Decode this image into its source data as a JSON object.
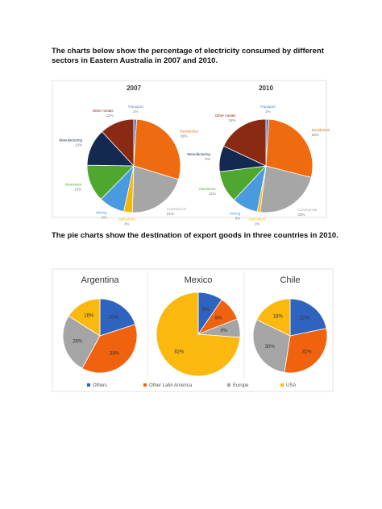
{
  "heading1": "The charts below show the percentage of electricity consumed by different sectors in Eastern Australia in 2007 and 2010.",
  "heading2": "The pie charts show the destination of export goods in three countries in 2010.",
  "chart_data": [
    {
      "type": "pie",
      "title": "2007",
      "categories": [
        "Transport",
        "Residential",
        "Commercial",
        "Agriculture",
        "Mining",
        "Aluminium",
        "Manufacturing",
        "Other metals"
      ],
      "values": [
        1,
        29,
        21,
        3,
        9,
        13,
        13,
        12
      ],
      "value_labels": [
        "1%",
        "29%",
        "21%",
        "3%",
        "9%",
        "13%",
        "13%",
        "12%"
      ],
      "colors": [
        "#4a7bc4",
        "#ef6b10",
        "#a6a6a6",
        "#f5b800",
        "#4a9ae0",
        "#4ea72e",
        "#13294f",
        "#8b2a12"
      ]
    },
    {
      "type": "pie",
      "title": "2010",
      "categories": [
        "Transport",
        "Residential",
        "Commercial",
        "Agriculture",
        "Mining",
        "Aluminium",
        "Manufacturing",
        "Other metals"
      ],
      "values": [
        1,
        28,
        23,
        1,
        9,
        11,
        9,
        18
      ],
      "value_labels": [
        "1%",
        "28%",
        "23%",
        "1%",
        "9%",
        "11%",
        "9%",
        "18%"
      ],
      "colors": [
        "#4a7bc4",
        "#ef6b10",
        "#a6a6a6",
        "#f5b800",
        "#4a9ae0",
        "#4ea72e",
        "#13294f",
        "#8b2a12"
      ]
    },
    {
      "type": "pie",
      "title": "Argentina",
      "categories": [
        "Others",
        "Other Latin America",
        "Europe",
        "USA"
      ],
      "values": [
        20,
        38,
        26,
        16
      ],
      "value_labels": [
        "20%",
        "38%",
        "26%",
        "16%"
      ],
      "colors": [
        "#2e63c0",
        "#f0620e",
        "#a5a5a5",
        "#fbb90f"
      ]
    },
    {
      "type": "pie",
      "title": "Mexico",
      "categories": [
        "Others",
        "Other Latin America",
        "Europe",
        "USA"
      ],
      "values": [
        8,
        8,
        6,
        62
      ],
      "value_labels": [
        "8%",
        "8%",
        "6%",
        "62%"
      ],
      "colors": [
        "#2e63c0",
        "#f0620e",
        "#a5a5a5",
        "#fbb90f"
      ]
    },
    {
      "type": "pie",
      "title": "Chile",
      "categories": [
        "Others",
        "Other Latin America",
        "Europe",
        "USA"
      ],
      "values": [
        22,
        31,
        30,
        18
      ],
      "value_labels": [
        "22%",
        "31%",
        "30%",
        "18%"
      ],
      "colors": [
        "#2e63c0",
        "#f0620e",
        "#a5a5a5",
        "#fbb90f"
      ]
    }
  ]
}
